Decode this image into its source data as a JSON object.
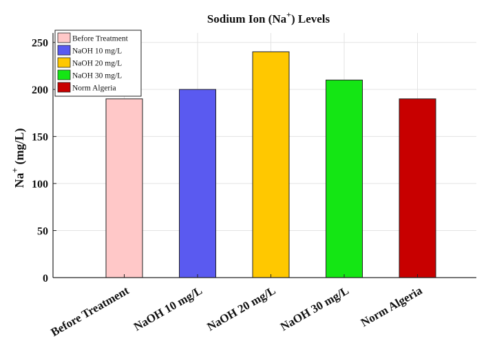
{
  "chart_data": {
    "type": "bar",
    "title_prefix": "Sodium Ion (Na",
    "title_sup": "+",
    "title_suffix": ") Levels",
    "ylabel_base": "Na",
    "ylabel_sup": "+",
    "ylabel_suffix": " (mg/L)",
    "xlabel": "",
    "categories": [
      "Before Treatment",
      "NaOH 10 mg/L",
      "NaOH 20 mg/L",
      "NaOH 30 mg/L",
      "Norm Algeria"
    ],
    "values": [
      190,
      200,
      240,
      210,
      190
    ],
    "colors": [
      "#ffc8c8",
      "#5a5af0",
      "#ffc800",
      "#14e614",
      "#c80000"
    ],
    "ylim": [
      0,
      260
    ],
    "yticks": [
      0,
      50,
      100,
      150,
      200,
      250
    ],
    "grid": true,
    "legend_position": "top-left",
    "legend": [
      "Before Treatment",
      "NaOH 10 mg/L",
      "NaOH 20 mg/L",
      "NaOH 30 mg/L",
      "Norm Algeria"
    ]
  }
}
